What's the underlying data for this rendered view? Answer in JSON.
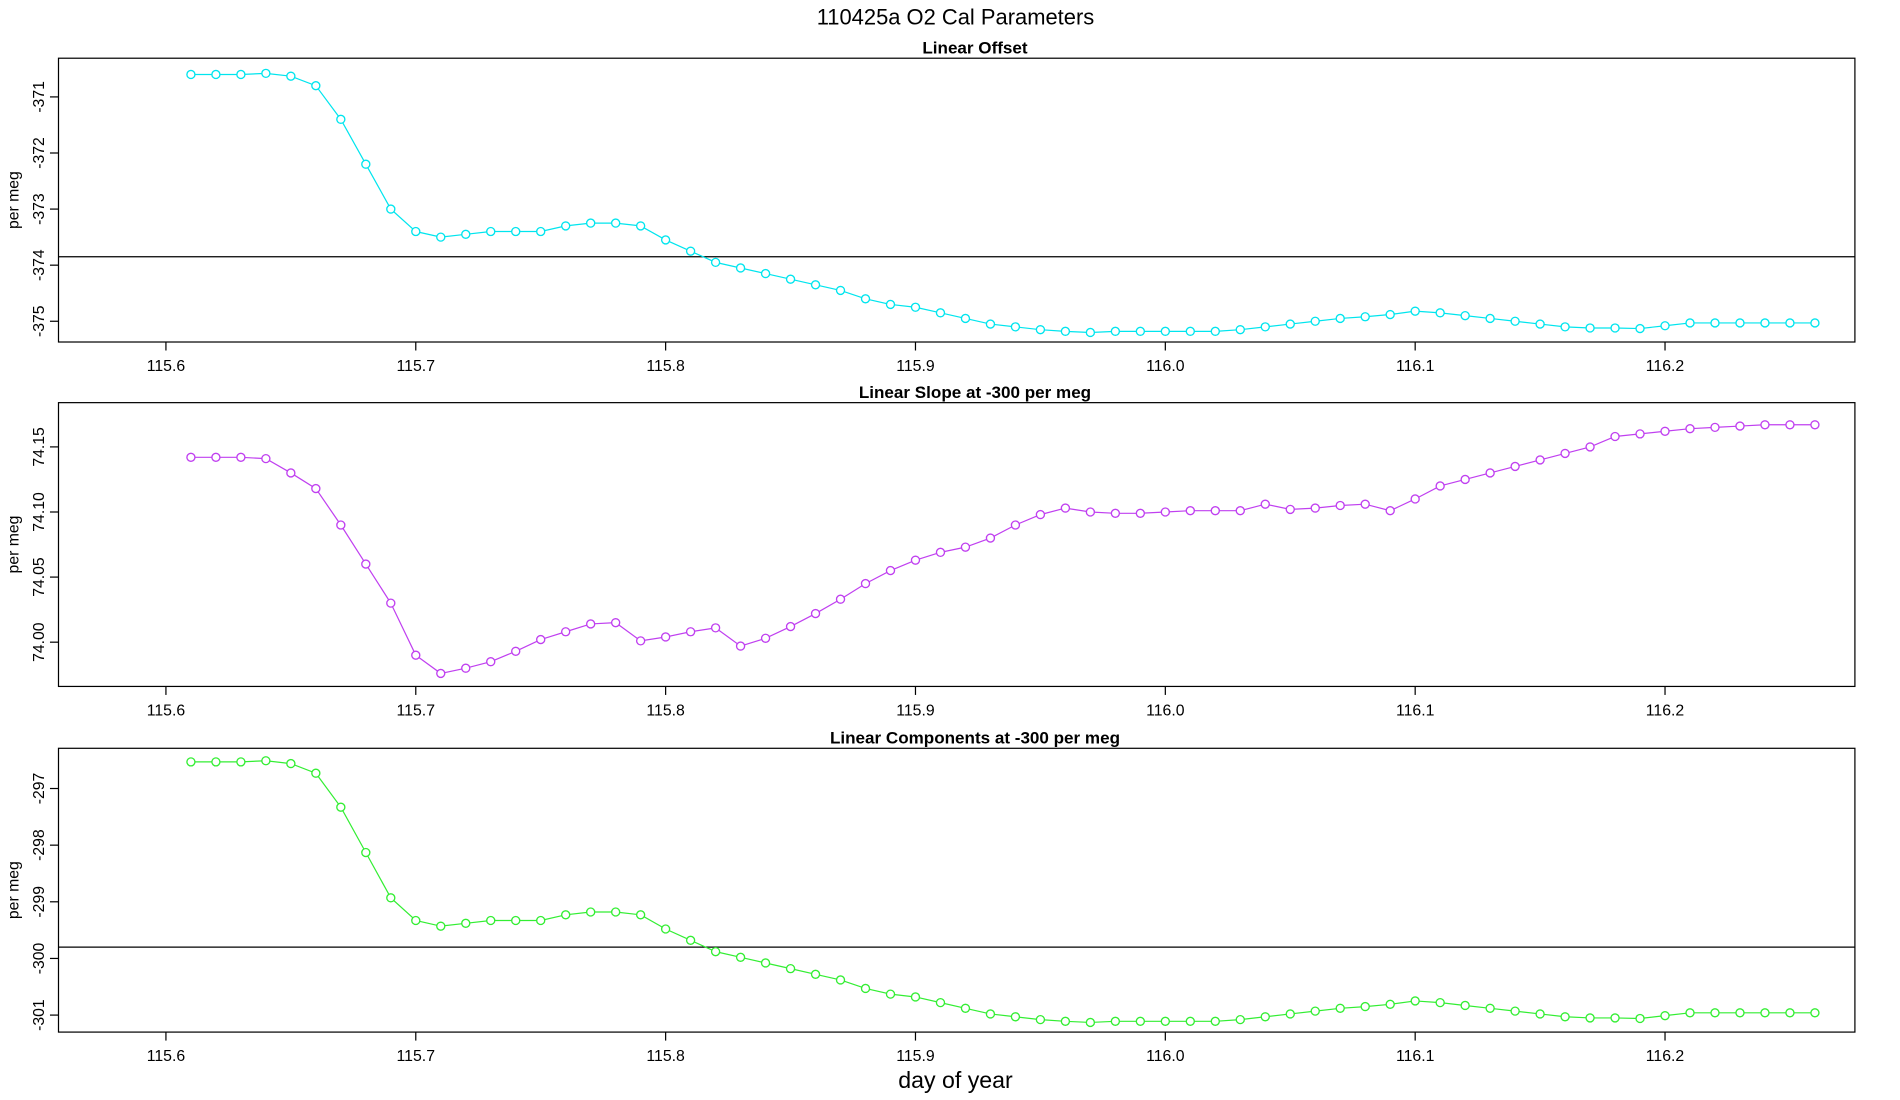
{
  "title": "110425a   O2 Cal Parameters",
  "xlabel": "day of year",
  "chart_data": [
    {
      "type": "line",
      "title": "Linear Offset",
      "ylabel": "per meg",
      "xlim": [
        115.557,
        116.276
      ],
      "ylim": [
        -375.37,
        -370.31
      ],
      "xticks": [
        115.6,
        115.7,
        115.8,
        115.9,
        {
          "value": 116,
          "label": "116.0"
        },
        116.1,
        116.2
      ],
      "yticks": [
        -371,
        -372,
        -373,
        -374,
        -375
      ],
      "hline": -373.85,
      "x": [
        115.61,
        115.62,
        115.63,
        115.64,
        115.65,
        115.66,
        115.67,
        115.68,
        115.69,
        115.7,
        115.71,
        115.72,
        115.73,
        115.74,
        115.75,
        115.76,
        115.77,
        115.78,
        115.79,
        115.8,
        115.81,
        115.82,
        115.83,
        115.84,
        115.85,
        115.86,
        115.87,
        115.88,
        115.89,
        115.9,
        115.91,
        115.92,
        115.93,
        115.94,
        115.95,
        115.96,
        115.97,
        115.98,
        115.99,
        116,
        116.01,
        116.02,
        116.03,
        116.04,
        116.05,
        116.06,
        116.07,
        116.08,
        116.09,
        116.1,
        116.11,
        116.12,
        116.13,
        116.14,
        116.15,
        116.16,
        116.17,
        116.18,
        116.19,
        116.2,
        116.21,
        116.22,
        116.23,
        116.24,
        116.25,
        116.26
      ],
      "series": [
        {
          "color": "#00e5ee",
          "values": [
            -370.6,
            -370.6,
            -370.6,
            -370.58,
            -370.63,
            -370.8,
            -371.4,
            -372.2,
            -373.0,
            -373.4,
            -373.5,
            -373.45,
            -373.4,
            -373.4,
            -373.4,
            -373.3,
            -373.25,
            -373.25,
            -373.3,
            -373.55,
            -373.75,
            -373.95,
            -374.05,
            -374.15,
            -374.25,
            -374.35,
            -374.45,
            -374.6,
            -374.7,
            -374.75,
            -374.85,
            -374.95,
            -375.05,
            -375.1,
            -375.15,
            -375.18,
            -375.2,
            -375.18,
            -375.18,
            -375.18,
            -375.18,
            -375.18,
            -375.15,
            -375.1,
            -375.05,
            -375.0,
            -374.95,
            -374.92,
            -374.88,
            -374.82,
            -374.85,
            -374.9,
            -374.95,
            -375.0,
            -375.05,
            -375.1,
            -375.12,
            -375.12,
            -375.13,
            -375.08,
            -375.03,
            -375.03,
            -375.03,
            -375.03,
            -375.03,
            -375.03
          ]
        }
      ]
    },
    {
      "type": "line",
      "title": "Linear Slope at -300 per meg",
      "ylabel": "per meg",
      "xlim": [
        115.557,
        116.276
      ],
      "ylim": [
        73.966,
        74.184
      ],
      "xticks": [
        115.6,
        115.7,
        115.8,
        115.9,
        {
          "value": 116,
          "label": "116.0"
        },
        116.1,
        116.2
      ],
      "yticks": [
        74.15,
        {
          "value": 74.1,
          "label": "74.10"
        },
        74.05,
        {
          "value": 74,
          "label": "74.00"
        }
      ],
      "x": [
        115.61,
        115.62,
        115.63,
        115.64,
        115.65,
        115.66,
        115.67,
        115.68,
        115.69,
        115.7,
        115.71,
        115.72,
        115.73,
        115.74,
        115.75,
        115.76,
        115.77,
        115.78,
        115.79,
        115.8,
        115.81,
        115.82,
        115.83,
        115.84,
        115.85,
        115.86,
        115.87,
        115.88,
        115.89,
        115.9,
        115.91,
        115.92,
        115.93,
        115.94,
        115.95,
        115.96,
        115.97,
        115.98,
        115.99,
        116,
        116.01,
        116.02,
        116.03,
        116.04,
        116.05,
        116.06,
        116.07,
        116.08,
        116.09,
        116.1,
        116.11,
        116.12,
        116.13,
        116.14,
        116.15,
        116.16,
        116.17,
        116.18,
        116.19,
        116.2,
        116.21,
        116.22,
        116.23,
        116.24,
        116.25,
        116.26
      ],
      "series": [
        {
          "color": "#c040f0",
          "values": [
            74.142,
            74.142,
            74.142,
            74.141,
            74.13,
            74.118,
            74.09,
            74.06,
            74.03,
            73.99,
            73.976,
            73.98,
            73.985,
            73.993,
            74.002,
            74.008,
            74.014,
            74.015,
            74.001,
            74.004,
            74.008,
            74.011,
            73.997,
            74.003,
            74.012,
            74.022,
            74.033,
            74.045,
            74.055,
            74.063,
            74.069,
            74.073,
            74.08,
            74.09,
            74.098,
            74.103,
            74.1,
            74.099,
            74.099,
            74.1,
            74.101,
            74.101,
            74.101,
            74.106,
            74.102,
            74.103,
            74.105,
            74.106,
            74.101,
            74.11,
            74.12,
            74.125,
            74.13,
            74.135,
            74.14,
            74.145,
            74.15,
            74.158,
            74.16,
            74.162,
            74.164,
            74.165,
            74.166,
            74.167,
            74.167,
            74.167
          ]
        }
      ]
    },
    {
      "type": "line",
      "title": "Linear Components at -300 per meg",
      "ylabel": "per meg",
      "xlim": [
        115.557,
        116.276
      ],
      "ylim": [
        -301.3,
        -296.29
      ],
      "xticks": [
        115.6,
        115.7,
        115.8,
        115.9,
        {
          "value": 116,
          "label": "116.0"
        },
        116.1,
        116.2
      ],
      "yticks": [
        -297,
        -298,
        -299,
        -300,
        -301
      ],
      "hline": -299.8,
      "x": [
        115.61,
        115.62,
        115.63,
        115.64,
        115.65,
        115.66,
        115.67,
        115.68,
        115.69,
        115.7,
        115.71,
        115.72,
        115.73,
        115.74,
        115.75,
        115.76,
        115.77,
        115.78,
        115.79,
        115.8,
        115.81,
        115.82,
        115.83,
        115.84,
        115.85,
        115.86,
        115.87,
        115.88,
        115.89,
        115.9,
        115.91,
        115.92,
        115.93,
        115.94,
        115.95,
        115.96,
        115.97,
        115.98,
        115.99,
        116,
        116.01,
        116.02,
        116.03,
        116.04,
        116.05,
        116.06,
        116.07,
        116.08,
        116.09,
        116.1,
        116.11,
        116.12,
        116.13,
        116.14,
        116.15,
        116.16,
        116.17,
        116.18,
        116.19,
        116.2,
        116.21,
        116.22,
        116.23,
        116.24,
        116.25,
        116.26
      ],
      "series": [
        {
          "color": "#33ee33",
          "values": [
            -296.53,
            -296.53,
            -296.53,
            -296.51,
            -296.56,
            -296.73,
            -297.33,
            -298.13,
            -298.93,
            -299.33,
            -299.43,
            -299.38,
            -299.33,
            -299.33,
            -299.33,
            -299.23,
            -299.18,
            -299.18,
            -299.23,
            -299.48,
            -299.68,
            -299.88,
            -299.98,
            -300.08,
            -300.18,
            -300.28,
            -300.38,
            -300.53,
            -300.63,
            -300.68,
            -300.78,
            -300.88,
            -300.98,
            -301.03,
            -301.08,
            -301.11,
            -301.13,
            -301.11,
            -301.11,
            -301.11,
            -301.11,
            -301.11,
            -301.08,
            -301.03,
            -300.98,
            -300.93,
            -300.88,
            -300.85,
            -300.81,
            -300.75,
            -300.78,
            -300.83,
            -300.88,
            -300.93,
            -300.98,
            -301.03,
            -301.05,
            -301.05,
            -301.06,
            -301.01,
            -300.96,
            -300.96,
            -300.96,
            -300.96,
            -300.96,
            -300.96
          ]
        }
      ]
    }
  ]
}
